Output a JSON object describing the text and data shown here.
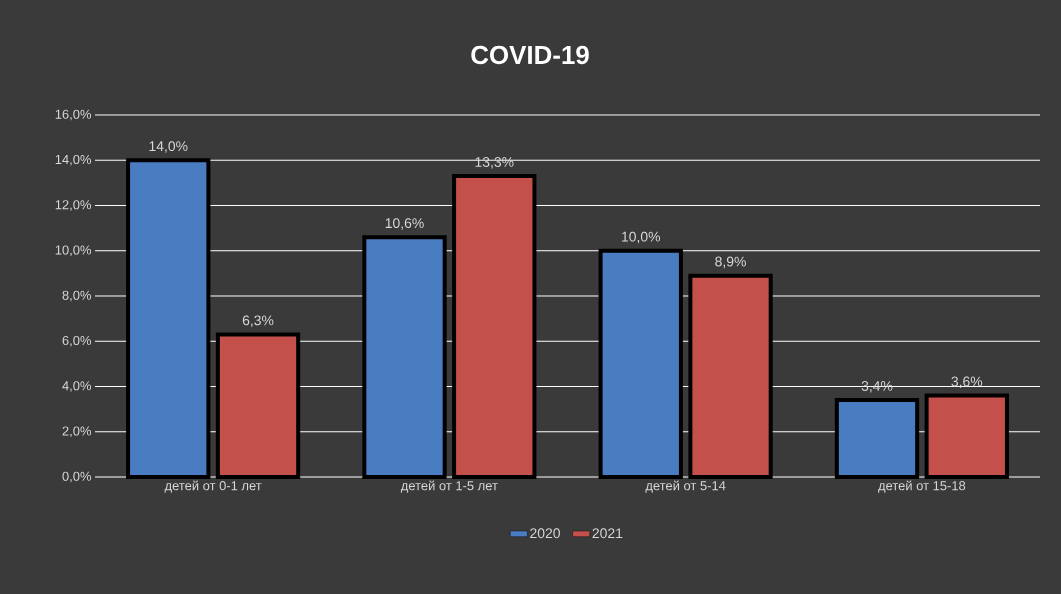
{
  "chart_data": {
    "type": "bar",
    "title": "COVID-19",
    "categories": [
      "детей от 0-1 лет",
      "детей от 1-5 лет",
      "детей от 5-14",
      "детей от 15-18"
    ],
    "series": [
      {
        "name": "2020",
        "color": "#4a7cc2",
        "values": [
          14.0,
          10.6,
          10.0,
          3.4
        ],
        "value_labels": [
          "14,0%",
          "10,6%",
          "10,0%",
          "3,4%"
        ]
      },
      {
        "name": "2021",
        "color": "#c4504c",
        "values": [
          6.3,
          13.3,
          8.9,
          3.6
        ],
        "value_labels": [
          "6,3%",
          "13,3%",
          "8,9%",
          "3,6%"
        ]
      }
    ],
    "ylim": [
      0,
      16
    ],
    "yticks": [
      {
        "value": 0,
        "label": "0,0%"
      },
      {
        "value": 2,
        "label": "2,0%"
      },
      {
        "value": 4,
        "label": "4,0%"
      },
      {
        "value": 6,
        "label": "6,0%"
      },
      {
        "value": 8,
        "label": "8,0%"
      },
      {
        "value": 10,
        "label": "10,0%"
      },
      {
        "value": 12,
        "label": "12,0%"
      },
      {
        "value": 14,
        "label": "14,0%"
      },
      {
        "value": 16,
        "label": "16,0%"
      }
    ],
    "grid": "y",
    "legend": "bottom"
  }
}
